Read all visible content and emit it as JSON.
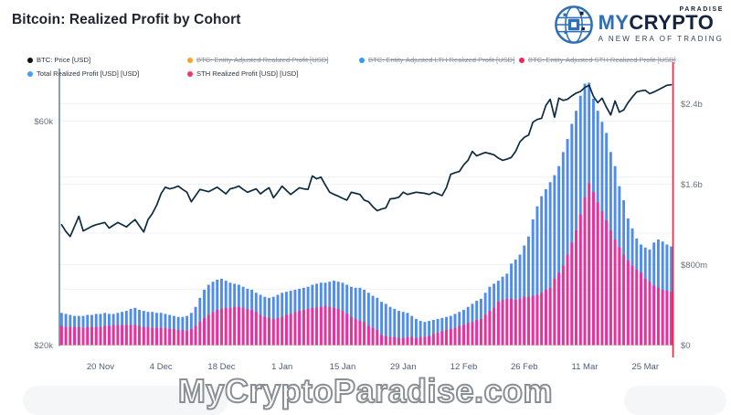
{
  "header": {
    "title": "Bitcoin: Realized Profit by Cohort"
  },
  "logo": {
    "paradise": "PARADISE",
    "brand_prefix": "MY",
    "brand_suffix": "CRYPTO",
    "tagline": "A NEW ERA OF TRADING",
    "brand_blue": "#2e6fb5",
    "brand_dark": "#16233f"
  },
  "watermark": {
    "text": "MyCryptoParadise.com"
  },
  "legend": {
    "rows": [
      [
        {
          "label": "BTC: Price [USD]",
          "color": "#111111",
          "active": true
        },
        {
          "label": "BTC: Entity-Adjusted Realized Profit [USD]",
          "color": "#f5a623",
          "active": false
        },
        {
          "label": "BTC: Entity-Adjusted LTH Realized Profit [USD]",
          "color": "#2f9bf3",
          "active": false
        },
        {
          "label": "BTC: Entity-Adjusted STH Realized Profit [USD]",
          "color": "#f0285a",
          "active": false
        }
      ],
      [
        {
          "label": "Total Realized Profit [USD] [USD]",
          "color": "#42a0f5",
          "active": true
        },
        {
          "label": "STH Realized Profit [USD] [USD]",
          "color": "#f0356b",
          "active": true
        }
      ]
    ]
  },
  "chart_data": {
    "type": "mixed",
    "title": "Bitcoin: Realized Profit by Cohort",
    "x": {
      "unit": "date",
      "start": "11 Nov",
      "end": "31 Mar",
      "n_points": 142,
      "tick_labels": [
        "20 Nov",
        "4 Dec",
        "18 Dec",
        "1 Jan",
        "15 Jan",
        "29 Jan",
        "12 Feb",
        "26 Feb",
        "11 Mar",
        "25 Mar"
      ],
      "tick_day_indices": [
        9,
        23,
        37,
        51,
        65,
        79,
        93,
        107,
        121,
        135
      ]
    },
    "left_axis": {
      "labels": [
        {
          "text": "$60k",
          "value_k": 60
        },
        {
          "text": "$20k",
          "value_k": 20
        }
      ],
      "range_k": [
        20,
        60
      ],
      "gridline_values_k": [
        30,
        40,
        50,
        60
      ]
    },
    "right_axis": {
      "labels": [
        {
          "text": "$2.4b",
          "value_b": 2.4
        },
        {
          "text": "$1.6b",
          "value_b": 1.6
        },
        {
          "text": "$800m",
          "value_b": 0.8
        },
        {
          "text": "$0",
          "value_b": 0
        }
      ],
      "gridline_values_b": [
        0.8,
        1.6,
        2.4
      ]
    },
    "series": [
      {
        "name": "BTC: Price [USD]",
        "type": "line",
        "axis": "left",
        "unit": "USD thousands",
        "color": "#0d2c3f",
        "values": [
          41.5,
          40.3,
          39.4,
          41.2,
          43.0,
          40.4,
          40.8,
          41.2,
          41.5,
          41.7,
          41.9,
          40.9,
          41.4,
          41.9,
          41.5,
          41.1,
          41.8,
          42.4,
          41.3,
          40.2,
          42.4,
          43.5,
          45.0,
          47.0,
          48.2,
          47.9,
          48.1,
          48.4,
          47.8,
          47.3,
          45.6,
          46.7,
          47.8,
          47.6,
          47.4,
          47.8,
          48.2,
          47.6,
          47.0,
          47.9,
          48.1,
          48.4,
          47.8,
          47.3,
          47.6,
          47.9,
          47.0,
          47.6,
          48.1,
          46.3,
          47.3,
          48.4,
          47.6,
          46.9,
          47.5,
          48.1,
          47.9,
          47.8,
          50.2,
          49.7,
          50.0,
          48.6,
          47.3,
          46.9,
          46.6,
          46.2,
          45.9,
          47.3,
          47.1,
          46.9,
          45.9,
          45.6,
          44.7,
          44.0,
          44.3,
          44.5,
          46.1,
          46.2,
          46.4,
          47.3,
          46.9,
          47.1,
          47.3,
          47.2,
          47.1,
          46.9,
          47.3,
          47.0,
          46.7,
          48.1,
          50.5,
          50.8,
          51.0,
          52.2,
          53.0,
          54.6,
          53.8,
          54.1,
          54.4,
          54.2,
          54.0,
          53.4,
          53.0,
          53.2,
          53.5,
          54.6,
          56.3,
          57.1,
          57.5,
          59.8,
          60.3,
          60.5,
          62.8,
          63.9,
          60.7,
          64.1,
          63.7,
          63.9,
          64.5,
          65.0,
          65.3,
          66.0,
          66.4,
          64.4,
          63.3,
          64.1,
          62.5,
          61.1,
          63.6,
          61.6,
          62.0,
          63.3,
          64.3,
          65.2,
          65.4,
          65.5,
          64.9,
          65.2,
          65.6,
          66.0,
          66.4,
          66.5
        ]
      },
      {
        "name": "Total Realized Profit [USD] [USD]",
        "type": "bar",
        "axis": "right",
        "unit": "USD billions",
        "color": "#4f8ceb",
        "values": [
          0.32,
          0.31,
          0.3,
          0.29,
          0.29,
          0.29,
          0.3,
          0.3,
          0.31,
          0.31,
          0.32,
          0.31,
          0.31,
          0.32,
          0.33,
          0.34,
          0.36,
          0.37,
          0.35,
          0.34,
          0.33,
          0.33,
          0.32,
          0.32,
          0.31,
          0.3,
          0.29,
          0.28,
          0.28,
          0.29,
          0.32,
          0.38,
          0.47,
          0.55,
          0.6,
          0.63,
          0.65,
          0.66,
          0.64,
          0.62,
          0.61,
          0.6,
          0.58,
          0.56,
          0.55,
          0.52,
          0.5,
          0.48,
          0.47,
          0.48,
          0.5,
          0.52,
          0.53,
          0.54,
          0.55,
          0.56,
          0.57,
          0.58,
          0.6,
          0.61,
          0.62,
          0.62,
          0.63,
          0.64,
          0.63,
          0.62,
          0.6,
          0.58,
          0.57,
          0.57,
          0.55,
          0.52,
          0.49,
          0.47,
          0.43,
          0.41,
          0.38,
          0.36,
          0.34,
          0.33,
          0.32,
          0.29,
          0.26,
          0.24,
          0.23,
          0.24,
          0.25,
          0.26,
          0.27,
          0.28,
          0.29,
          0.31,
          0.33,
          0.35,
          0.38,
          0.41,
          0.44,
          0.46,
          0.52,
          0.58,
          0.61,
          0.64,
          0.68,
          0.71,
          0.81,
          0.85,
          0.9,
          0.99,
          1.08,
          1.25,
          1.38,
          1.48,
          1.55,
          1.62,
          1.69,
          1.78,
          1.92,
          2.05,
          2.2,
          2.33,
          2.48,
          2.6,
          2.61,
          2.45,
          2.33,
          2.22,
          2.11,
          1.92,
          1.78,
          1.58,
          1.44,
          1.26,
          1.16,
          1.06,
          1.0,
          0.97,
          0.95,
          1.02,
          1.05,
          1.03,
          1.0,
          0.98
        ]
      },
      {
        "name": "STH Realized Profit [USD] [USD]",
        "type": "bar",
        "axis": "right",
        "unit": "USD billions",
        "color": "#ee2f9b",
        "values": [
          0.19,
          0.18,
          0.18,
          0.18,
          0.18,
          0.17,
          0.18,
          0.18,
          0.18,
          0.18,
          0.19,
          0.19,
          0.2,
          0.2,
          0.2,
          0.2,
          0.2,
          0.2,
          0.19,
          0.18,
          0.18,
          0.17,
          0.17,
          0.17,
          0.17,
          0.16,
          0.16,
          0.15,
          0.15,
          0.14,
          0.16,
          0.19,
          0.23,
          0.27,
          0.3,
          0.33,
          0.35,
          0.36,
          0.37,
          0.37,
          0.38,
          0.38,
          0.37,
          0.36,
          0.35,
          0.33,
          0.3,
          0.28,
          0.27,
          0.26,
          0.27,
          0.28,
          0.3,
          0.31,
          0.33,
          0.34,
          0.35,
          0.36,
          0.37,
          0.37,
          0.38,
          0.39,
          0.38,
          0.37,
          0.36,
          0.34,
          0.31,
          0.28,
          0.26,
          0.24,
          0.23,
          0.19,
          0.17,
          0.15,
          0.1,
          0.09,
          0.08,
          0.08,
          0.07,
          0.07,
          0.08,
          0.08,
          0.07,
          0.08,
          0.08,
          0.09,
          0.11,
          0.12,
          0.14,
          0.15,
          0.16,
          0.17,
          0.19,
          0.2,
          0.22,
          0.23,
          0.25,
          0.26,
          0.3,
          0.34,
          0.37,
          0.43,
          0.45,
          0.46,
          0.46,
          0.45,
          0.46,
          0.48,
          0.48,
          0.49,
          0.5,
          0.52,
          0.55,
          0.57,
          0.66,
          0.72,
          0.79,
          0.9,
          1.02,
          1.14,
          1.3,
          1.47,
          1.61,
          1.52,
          1.42,
          1.33,
          1.24,
          1.14,
          1.05,
          0.97,
          0.9,
          0.84,
          0.79,
          0.75,
          0.72,
          0.66,
          0.63,
          0.59,
          0.57,
          0.55,
          0.54,
          0.53
        ]
      }
    ],
    "marker": {
      "type": "vertical-line",
      "position": "right-edge",
      "color": "#f4263e"
    }
  }
}
